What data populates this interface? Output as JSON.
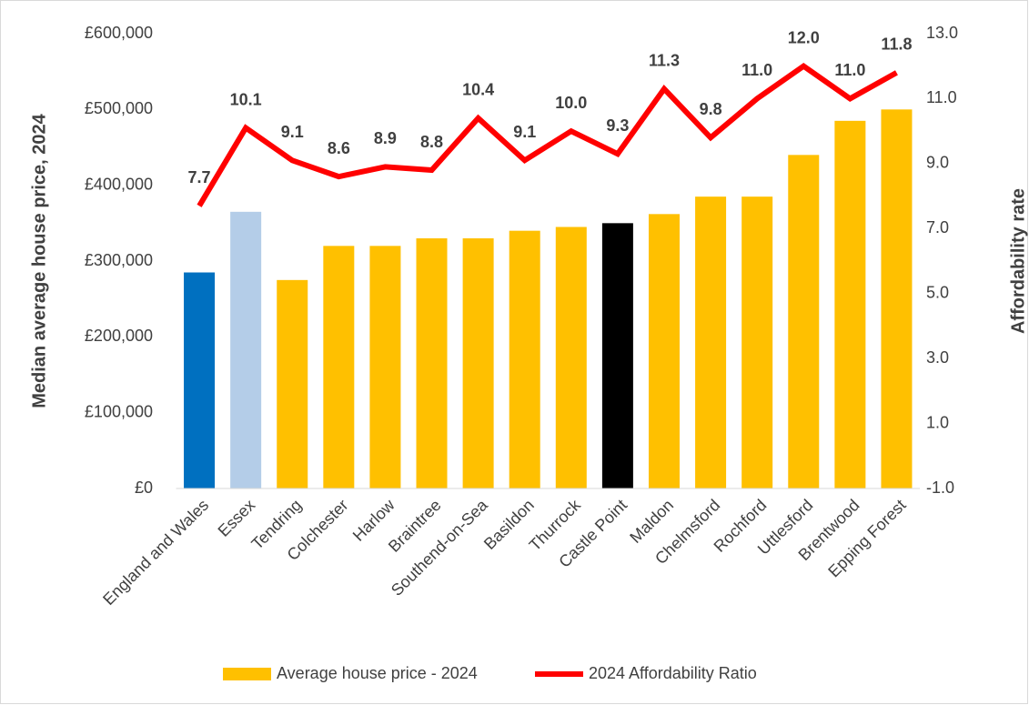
{
  "chart_data": {
    "type": "bar_line",
    "categories": [
      "England and Wales",
      "Essex",
      "Tendring",
      "Colchester",
      "Harlow",
      "Braintree",
      "Southend-on-Sea",
      "Basildon",
      "Thurrock",
      "Castle Point",
      "Maldon",
      "Chelmsford",
      "Rochford",
      "Uttlesford",
      "Brentwood",
      "Epping Forest"
    ],
    "series": [
      {
        "name": "Average house price - 2024",
        "type": "bar",
        "color": "#ffc000",
        "bar_colors": [
          "#0070c0",
          "#b4cde8",
          "#ffc000",
          "#ffc000",
          "#ffc000",
          "#ffc000",
          "#ffc000",
          "#ffc000",
          "#ffc000",
          "#000000",
          "#ffc000",
          "#ffc000",
          "#ffc000",
          "#ffc000",
          "#ffc000",
          "#ffc000"
        ],
        "values": [
          285000,
          365000,
          275000,
          320000,
          320000,
          330000,
          330000,
          340000,
          345000,
          350000,
          362000,
          385000,
          385000,
          440000,
          485000,
          500000
        ]
      },
      {
        "name": "2024 Affordability Ratio",
        "type": "line",
        "axis": "y2",
        "color": "#ff0000",
        "values": [
          7.7,
          10.1,
          9.1,
          8.6,
          8.9,
          8.8,
          10.4,
          9.1,
          10.0,
          9.3,
          11.3,
          9.8,
          11.0,
          12.0,
          11.0,
          11.8
        ],
        "value_labels": [
          "7.7",
          "10.1",
          "9.1",
          "8.6",
          "8.9",
          "8.8",
          "10.4",
          "9.1",
          "10.0",
          "9.3",
          "11.3",
          "9.8",
          "11.0",
          "12.0",
          "11.0",
          "11.8"
        ]
      }
    ],
    "ylabel": "Median average house price, 2024",
    "y2label": "Affordability rate",
    "ylim": [
      0,
      600000
    ],
    "yticks": [
      {
        "value": 0,
        "label": "£0"
      },
      {
        "value": 100000,
        "label": "£100,000"
      },
      {
        "value": 200000,
        "label": "£200,000"
      },
      {
        "value": 300000,
        "label": "£300,000"
      },
      {
        "value": 400000,
        "label": "£400,000"
      },
      {
        "value": 500000,
        "label": "£500,000"
      },
      {
        "value": 600000,
        "label": "£600,000"
      }
    ],
    "y2lim": [
      -1,
      13
    ],
    "y2ticks": [
      {
        "value": -1,
        "label": "-1.0"
      },
      {
        "value": 1,
        "label": "1.0"
      },
      {
        "value": 3,
        "label": "3.0"
      },
      {
        "value": 5,
        "label": "5.0"
      },
      {
        "value": 7,
        "label": "7.0"
      },
      {
        "value": 9,
        "label": "9.0"
      },
      {
        "value": 11,
        "label": "11.0"
      },
      {
        "value": 13,
        "label": "13.0"
      }
    ],
    "legend": "bottom",
    "grid": false
  }
}
